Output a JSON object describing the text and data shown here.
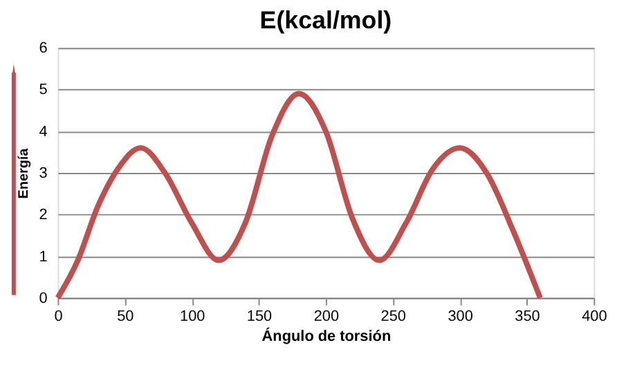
{
  "chart_data": {
    "type": "line",
    "title": "E(kcal/mol)",
    "xlabel": "Ángulo de torsión",
    "ylabel": "Energía",
    "x": [
      0,
      15,
      30,
      45,
      62,
      80,
      100,
      120,
      140,
      160,
      180,
      200,
      220,
      240,
      260,
      280,
      300,
      320,
      340,
      360
    ],
    "series": [
      {
        "color": "#c0504d",
        "values": [
          0,
          0.9,
          2.2,
          3.1,
          3.6,
          3.0,
          1.8,
          0.9,
          1.8,
          3.9,
          4.9,
          4.0,
          1.9,
          0.9,
          1.8,
          3.1,
          3.6,
          3.0,
          1.6,
          0
        ]
      }
    ],
    "xlim": [
      0,
      400
    ],
    "xticks": [
      0,
      50,
      100,
      150,
      200,
      250,
      300,
      350,
      400
    ],
    "ylim": [
      0,
      6
    ],
    "yticks": [
      0,
      1,
      2,
      3,
      4,
      5,
      6
    ],
    "grid": "y",
    "legend": false,
    "marker": "none",
    "line_style": "solid"
  }
}
